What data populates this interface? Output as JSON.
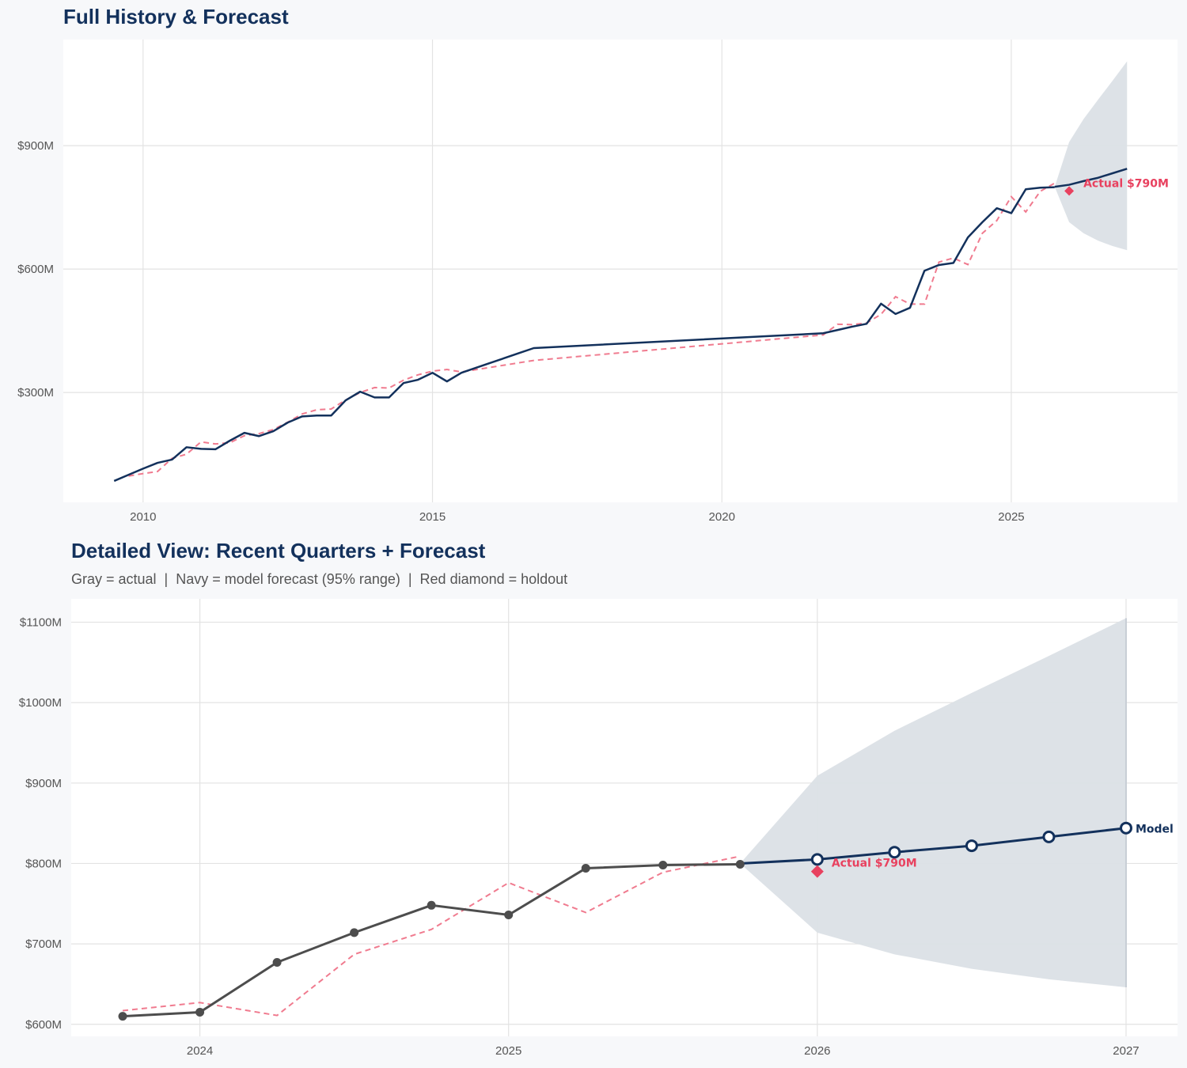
{
  "colors": {
    "navy": "#13315c",
    "red": "#e8415f",
    "dashed": "#f07b8f",
    "band": "#dbe0e6",
    "gray": "#4d4d4d",
    "grid": "#e3e3e3"
  },
  "chart_data": [
    {
      "type": "line",
      "title": "Full History & Forecast",
      "xlim": [
        "2008-08-15",
        "2027-11-15"
      ],
      "ylim": [
        33,
        1158
      ],
      "x_ticks": [
        "2010",
        "2015",
        "2020",
        "2025"
      ],
      "y_ticks": [
        {
          "value": 300,
          "label": "$300M"
        },
        {
          "value": 600,
          "label": "$600M"
        },
        {
          "value": 900,
          "label": "$900M"
        }
      ],
      "grid": true,
      "actual": [
        [
          "2009-07-01",
          85
        ],
        [
          "2009-10-01",
          100
        ],
        [
          "2010-01-01",
          115
        ],
        [
          "2010-04-01",
          129
        ],
        [
          "2010-07-01",
          137
        ],
        [
          "2010-10-01",
          167
        ],
        [
          "2011-01-01",
          163
        ],
        [
          "2011-04-01",
          162
        ],
        [
          "2011-07-01",
          183
        ],
        [
          "2011-10-01",
          202
        ],
        [
          "2012-01-01",
          194
        ],
        [
          "2012-04-01",
          206
        ],
        [
          "2012-07-01",
          227
        ],
        [
          "2012-10-01",
          242
        ],
        [
          "2013-01-01",
          244
        ],
        [
          "2013-04-01",
          244
        ],
        [
          "2013-07-01",
          281
        ],
        [
          "2013-10-01",
          302
        ],
        [
          "2014-01-01",
          288
        ],
        [
          "2014-04-01",
          288
        ],
        [
          "2014-07-01",
          323
        ],
        [
          "2014-10-01",
          331
        ],
        [
          "2015-01-01",
          348
        ],
        [
          "2015-04-01",
          327
        ],
        [
          "2015-07-01",
          348
        ],
        [
          "2015-10-01",
          360
        ],
        [
          "2016-01-01",
          372
        ],
        [
          "2016-04-01",
          384
        ],
        [
          "2016-07-01",
          396
        ],
        [
          "2016-10-01",
          408
        ],
        [
          "2021-10-01",
          444
        ],
        [
          "2022-01-01",
          452
        ],
        [
          "2022-04-01",
          460
        ],
        [
          "2022-07-01",
          467
        ],
        [
          "2022-10-01",
          516
        ],
        [
          "2023-01-01",
          491
        ],
        [
          "2023-04-01",
          506
        ],
        [
          "2023-07-01",
          596
        ],
        [
          "2023-10-01",
          610
        ],
        [
          "2024-01-01",
          615
        ],
        [
          "2024-04-01",
          677
        ],
        [
          "2024-07-01",
          714
        ],
        [
          "2024-10-01",
          748
        ],
        [
          "2025-01-01",
          736
        ],
        [
          "2025-04-01",
          794
        ],
        [
          "2025-07-01",
          798
        ],
        [
          "2025-10-01",
          799
        ]
      ],
      "fitted": [
        [
          "2009-10-01",
          97
        ],
        [
          "2010-01-01",
          103
        ],
        [
          "2010-04-01",
          108
        ],
        [
          "2010-07-01",
          140
        ],
        [
          "2010-10-01",
          150
        ],
        [
          "2011-01-01",
          180
        ],
        [
          "2011-04-01",
          175
        ],
        [
          "2011-07-01",
          178
        ],
        [
          "2011-10-01",
          195
        ],
        [
          "2012-01-01",
          200
        ],
        [
          "2012-04-01",
          210
        ],
        [
          "2012-07-01",
          228
        ],
        [
          "2012-10-01",
          248
        ],
        [
          "2013-01-01",
          258
        ],
        [
          "2013-04-01",
          260
        ],
        [
          "2013-07-01",
          282
        ],
        [
          "2013-10-01",
          300
        ],
        [
          "2014-01-01",
          312
        ],
        [
          "2014-04-01",
          311
        ],
        [
          "2014-07-01",
          330
        ],
        [
          "2014-10-01",
          343
        ],
        [
          "2015-01-01",
          352
        ],
        [
          "2015-04-01",
          356
        ],
        [
          "2015-07-01",
          350
        ],
        [
          "2016-10-01",
          378
        ],
        [
          "2021-10-01",
          440
        ],
        [
          "2022-01-01",
          466
        ],
        [
          "2022-04-01",
          465
        ],
        [
          "2022-07-01",
          469
        ],
        [
          "2022-10-01",
          490
        ],
        [
          "2023-01-01",
          533
        ],
        [
          "2023-04-01",
          515
        ],
        [
          "2023-07-01",
          515
        ],
        [
          "2023-10-01",
          617
        ],
        [
          "2024-01-01",
          627
        ],
        [
          "2024-04-01",
          611
        ],
        [
          "2024-07-01",
          687
        ],
        [
          "2024-10-01",
          718
        ],
        [
          "2025-01-01",
          776
        ],
        [
          "2025-04-01",
          739
        ],
        [
          "2025-07-01",
          789
        ],
        [
          "2025-10-01",
          809
        ]
      ],
      "forecast": [
        [
          "2025-10-01",
          800
        ],
        [
          "2026-01-01",
          805
        ],
        [
          "2026-04-01",
          814
        ],
        [
          "2026-07-01",
          822
        ],
        [
          "2026-10-01",
          833
        ],
        [
          "2027-01-01",
          844
        ]
      ],
      "band_lower": [
        800,
        714,
        687,
        669,
        656,
        646
      ],
      "band_upper": [
        800,
        909,
        965,
        1012,
        1058,
        1105
      ],
      "holdout": {
        "x": "2026-01-01",
        "value": 790,
        "label": "Actual $790M"
      }
    },
    {
      "type": "line",
      "title": "Detailed View: Recent Quarters + Forecast",
      "subtitle": "Gray = actual  |  Navy = model forecast (95% range)  |  Red diamond = holdout",
      "xlim": [
        "2023-08-01",
        "2027-03-01"
      ],
      "ylim": [
        585,
        1129
      ],
      "x_ticks": [
        "2024",
        "2025",
        "2026",
        "2027"
      ],
      "y_ticks": [
        {
          "value": 600,
          "label": "$600M"
        },
        {
          "value": 700,
          "label": "$700M"
        },
        {
          "value": 800,
          "label": "$800M"
        },
        {
          "value": 900,
          "label": "$900M"
        },
        {
          "value": 1000,
          "label": "$1000M"
        },
        {
          "value": 1100,
          "label": "$1100M"
        }
      ],
      "grid": true,
      "actual": [
        [
          "2023-10-01",
          610
        ],
        [
          "2024-01-01",
          615
        ],
        [
          "2024-04-01",
          677
        ],
        [
          "2024-07-01",
          714
        ],
        [
          "2024-10-01",
          748
        ],
        [
          "2025-01-01",
          736
        ],
        [
          "2025-04-01",
          794
        ],
        [
          "2025-07-01",
          798
        ],
        [
          "2025-10-01",
          799
        ]
      ],
      "fitted": [
        [
          "2023-10-01",
          617
        ],
        [
          "2024-01-01",
          627
        ],
        [
          "2024-04-01",
          611
        ],
        [
          "2024-07-01",
          687
        ],
        [
          "2024-10-01",
          718
        ],
        [
          "2025-01-01",
          776
        ],
        [
          "2025-04-01",
          739
        ],
        [
          "2025-07-01",
          789
        ],
        [
          "2025-10-01",
          809
        ]
      ],
      "forecast": [
        [
          "2025-10-01",
          800
        ],
        [
          "2026-01-01",
          805
        ],
        [
          "2026-04-01",
          814
        ],
        [
          "2026-07-01",
          822
        ],
        [
          "2026-10-01",
          833
        ],
        [
          "2027-01-01",
          844
        ]
      ],
      "band_lower": [
        800,
        714,
        687,
        669,
        656,
        646
      ],
      "band_upper": [
        800,
        909,
        965,
        1012,
        1058,
        1105
      ],
      "holdout": {
        "x": "2026-01-01",
        "value": 790,
        "label": "Actual $790M"
      },
      "forecast_label": "Model"
    }
  ]
}
